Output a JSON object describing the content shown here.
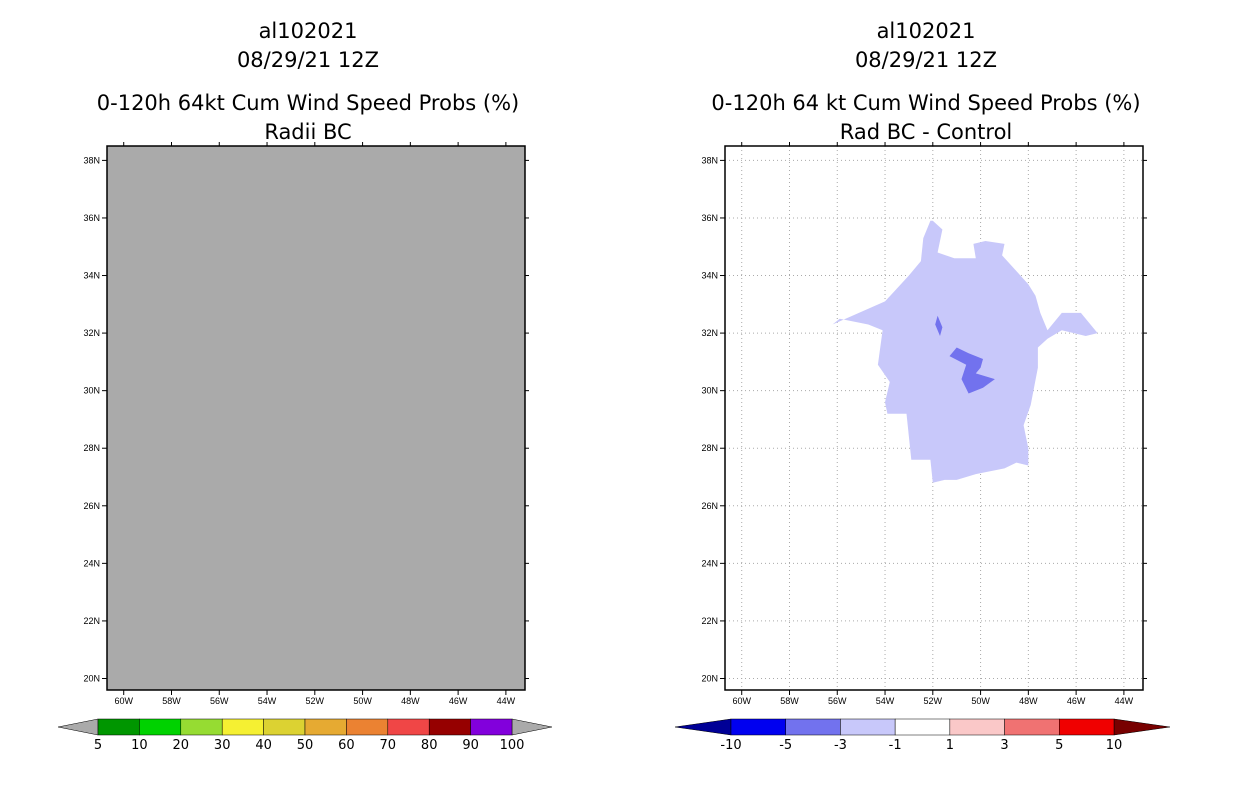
{
  "chart_data": [
    {
      "type": "heatmap",
      "title_lines": [
        "al102021",
        "08/29/21 12Z",
        "0-120h 64kt Cum Wind Speed Probs (%)",
        "Radii BC"
      ],
      "x_ticks": [
        "60W",
        "58W",
        "56W",
        "54W",
        "52W",
        "50W",
        "48W",
        "46W",
        "44W"
      ],
      "y_ticks": [
        "38N",
        "36N",
        "34N",
        "32N",
        "30N",
        "28N",
        "26N",
        "24N",
        "22N",
        "20N"
      ],
      "xlim": [
        -60.7,
        -43.2
      ],
      "ylim": [
        19.6,
        38.5
      ],
      "fill_color": "#aaaaaa",
      "grid": false,
      "colorbar": {
        "labels": [
          "5",
          "10",
          "20",
          "30",
          "40",
          "50",
          "60",
          "70",
          "80",
          "90",
          "100"
        ],
        "colors": [
          "#009600",
          "#00d200",
          "#96dc32",
          "#f5f032",
          "#dcd232",
          "#e6aa32",
          "#eb8232",
          "#f04646",
          "#960000",
          "#8200dc"
        ],
        "end_low": "#aaaaaa",
        "end_high": "#aaaaaa"
      }
    },
    {
      "type": "heatmap",
      "title_lines": [
        "al102021",
        "08/29/21 12Z",
        "0-120h 64 kt Cum Wind Speed Probs (%)",
        "Rad BC - Control"
      ],
      "x_ticks": [
        "60W",
        "58W",
        "56W",
        "54W",
        "52W",
        "50W",
        "48W",
        "46W",
        "44W"
      ],
      "y_ticks": [
        "38N",
        "36N",
        "34N",
        "32N",
        "30N",
        "28N",
        "26N",
        "24N",
        "22N",
        "20N"
      ],
      "xlim": [
        -60.7,
        -43.2
      ],
      "ylim": [
        19.6,
        38.5
      ],
      "grid": true,
      "regions": [
        {
          "level": "-3 to -1",
          "color": "#c8c8fa",
          "points": [
            [
              -52.0,
              35.9
            ],
            [
              -51.6,
              35.6
            ],
            [
              -51.8,
              34.8
            ],
            [
              -51.1,
              34.6
            ],
            [
              -50.2,
              34.6
            ],
            [
              -50.3,
              35.1
            ],
            [
              -49.8,
              35.2
            ],
            [
              -49.0,
              35.1
            ],
            [
              -49.1,
              34.7
            ],
            [
              -48.0,
              33.7
            ],
            [
              -47.7,
              33.3
            ],
            [
              -47.5,
              32.7
            ],
            [
              -47.2,
              32.1
            ],
            [
              -46.6,
              32.7
            ],
            [
              -45.8,
              32.7
            ],
            [
              -45.1,
              32.0
            ],
            [
              -45.6,
              31.9
            ],
            [
              -46.6,
              32.1
            ],
            [
              -47.2,
              31.8
            ],
            [
              -47.6,
              31.5
            ],
            [
              -47.6,
              30.8
            ],
            [
              -47.9,
              29.5
            ],
            [
              -48.2,
              28.8
            ],
            [
              -48.0,
              28.0
            ],
            [
              -48.0,
              27.4
            ],
            [
              -48.5,
              27.5
            ],
            [
              -49.0,
              27.3
            ],
            [
              -50.2,
              27.1
            ],
            [
              -51.0,
              26.9
            ],
            [
              -51.5,
              26.9
            ],
            [
              -52.0,
              26.8
            ],
            [
              -52.1,
              27.6
            ],
            [
              -52.9,
              27.6
            ],
            [
              -53.0,
              28.4
            ],
            [
              -53.1,
              29.2
            ],
            [
              -53.9,
              29.2
            ],
            [
              -54.0,
              29.6
            ],
            [
              -53.8,
              30.3
            ],
            [
              -54.3,
              30.9
            ],
            [
              -54.1,
              32.1
            ],
            [
              -54.7,
              32.3
            ],
            [
              -55.9,
              32.5
            ],
            [
              -56.2,
              32.3
            ],
            [
              -54.0,
              33.1
            ],
            [
              -53.0,
              34.0
            ],
            [
              -52.5,
              34.5
            ],
            [
              -52.4,
              35.3
            ],
            [
              -52.1,
              35.9
            ]
          ]
        },
        {
          "level": "-5 to -3",
          "color": "#7272ee",
          "points": [
            [
              -51.8,
              32.6
            ],
            [
              -51.6,
              32.2
            ],
            [
              -51.7,
              31.9
            ],
            [
              -51.9,
              32.3
            ]
          ]
        },
        {
          "level": "-5 to -3",
          "color": "#7272ee",
          "points": [
            [
              -51.0,
              31.5
            ],
            [
              -50.5,
              31.3
            ],
            [
              -49.9,
              31.1
            ],
            [
              -50.0,
              30.8
            ],
            [
              -50.2,
              30.6
            ],
            [
              -49.4,
              30.4
            ],
            [
              -49.9,
              30.1
            ],
            [
              -50.5,
              29.9
            ],
            [
              -50.8,
              30.4
            ],
            [
              -50.6,
              30.9
            ],
            [
              -51.3,
              31.2
            ]
          ]
        }
      ],
      "colorbar": {
        "labels": [
          "-10",
          "-5",
          "-3",
          "-1",
          "1",
          "3",
          "5",
          "10"
        ],
        "colors": [
          "#0000f0",
          "#7272ee",
          "#c8c8fa",
          "#ffffff",
          "#fac8c8",
          "#f07272",
          "#f00000"
        ],
        "end_low": "#000096",
        "end_high": "#780000"
      }
    }
  ]
}
